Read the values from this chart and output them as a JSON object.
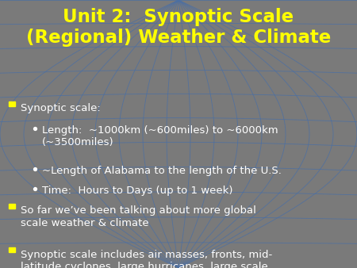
{
  "title_line1": "Unit 2:  Synoptic Scale",
  "title_line2": "(Regional) Weather & Climate",
  "title_color": "#FFFF00",
  "title_fontsize": 16.5,
  "bg_color": "#7a7a7a",
  "grid_color": "#4a6fa5",
  "text_color": "#FFFFFF",
  "bullet_sq_color": "#FFFF00",
  "body_fontsize": 9.5,
  "bullets": [
    {
      "level": 0,
      "text": "Synoptic scale:"
    },
    {
      "level": 1,
      "text": "Length:  ~1000km (~600miles) to ~6000km\n(~3500miles)"
    },
    {
      "level": 1,
      "text": "~Length of Alabama to the length of the U.S."
    },
    {
      "level": 1,
      "text": "Time:  Hours to Days (up to 1 week)"
    },
    {
      "level": 0,
      "text": "So far we’ve been talking about more global\nscale weather & climate"
    },
    {
      "level": 0,
      "text": "Synoptic scale includes air masses, fronts, mid-\nlatitude cyclones, large hurricanes, large scale\nprecipitation & temperature patterns"
    }
  ],
  "num_meridians": 16,
  "num_parallels": 12
}
